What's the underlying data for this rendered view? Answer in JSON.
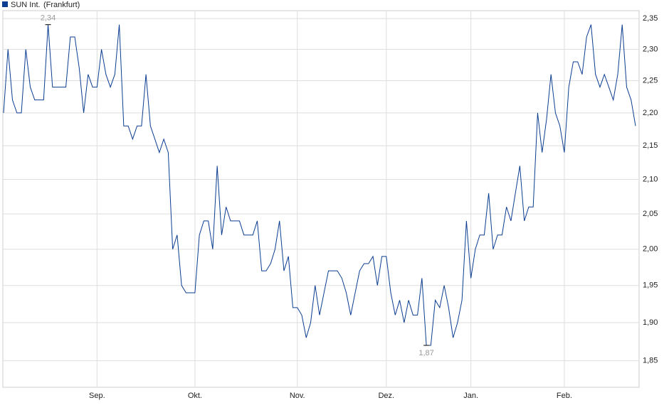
{
  "chart_data": {
    "type": "line",
    "log_scale": true,
    "grid": true,
    "series": [
      {
        "name": "SUN Int.",
        "color": "#0b3d91",
        "values": [
          2.2,
          2.3,
          2.22,
          2.2,
          2.2,
          2.3,
          2.24,
          2.22,
          2.22,
          2.22,
          2.34,
          2.24,
          2.24,
          2.24,
          2.24,
          2.32,
          2.32,
          2.27,
          2.2,
          2.26,
          2.24,
          2.24,
          2.3,
          2.26,
          2.24,
          2.26,
          2.34,
          2.18,
          2.18,
          2.16,
          2.18,
          2.18,
          2.26,
          2.18,
          2.16,
          2.14,
          2.16,
          2.14,
          2.0,
          2.02,
          1.95,
          1.94,
          1.94,
          1.94,
          2.02,
          2.04,
          2.04,
          2.0,
          2.12,
          2.02,
          2.06,
          2.04,
          2.04,
          2.04,
          2.02,
          2.02,
          2.02,
          2.04,
          1.97,
          1.97,
          1.98,
          2.0,
          2.04,
          1.97,
          1.99,
          1.92,
          1.92,
          1.91,
          1.88,
          1.9,
          1.95,
          1.91,
          1.94,
          1.97,
          1.97,
          1.97,
          1.96,
          1.94,
          1.91,
          1.94,
          1.97,
          1.98,
          1.98,
          1.99,
          1.95,
          1.99,
          1.99,
          1.94,
          1.91,
          1.93,
          1.9,
          1.93,
          1.91,
          1.91,
          1.96,
          1.87,
          1.87,
          1.93,
          1.92,
          1.95,
          1.92,
          1.88,
          1.9,
          1.93,
          2.04,
          1.96,
          2.0,
          2.02,
          2.02,
          2.08,
          2.0,
          2.02,
          2.02,
          2.06,
          2.04,
          2.08,
          2.12,
          2.04,
          2.06,
          2.06,
          2.2,
          2.14,
          2.19,
          2.26,
          2.2,
          2.18,
          2.14,
          2.24,
          2.28,
          2.28,
          2.26,
          2.32,
          2.34,
          2.26,
          2.24,
          2.26,
          2.24,
          2.22,
          2.26,
          2.34,
          2.24,
          2.22,
          2.18
        ]
      }
    ],
    "exchange": "(Frankfurt)",
    "categories": [
      null,
      null,
      null,
      null,
      null,
      null,
      null,
      null,
      null,
      null,
      null,
      null,
      null,
      null,
      null,
      null,
      null,
      null,
      null,
      null,
      null,
      "Sep.",
      null,
      null,
      null,
      null,
      null,
      null,
      null,
      null,
      null,
      null,
      null,
      null,
      null,
      null,
      null,
      null,
      null,
      null,
      null,
      null,
      null,
      "Okt.",
      null,
      null,
      null,
      null,
      null,
      null,
      null,
      null,
      null,
      null,
      null,
      null,
      null,
      null,
      null,
      null,
      null,
      null,
      null,
      null,
      null,
      null,
      "Nov.",
      null,
      null,
      null,
      null,
      null,
      null,
      null,
      null,
      null,
      null,
      null,
      null,
      null,
      null,
      null,
      null,
      null,
      null,
      null,
      "Dez.",
      null,
      null,
      null,
      null,
      null,
      null,
      null,
      null,
      null,
      null,
      null,
      null,
      null,
      null,
      null,
      null,
      null,
      null,
      "Jan.",
      null,
      null,
      null,
      null,
      null,
      null,
      null,
      null,
      null,
      null,
      null,
      null,
      null,
      null,
      null,
      null,
      null,
      null,
      null,
      null,
      "Feb.",
      null,
      null,
      null,
      null,
      null,
      null,
      null,
      null,
      null,
      null,
      null,
      null,
      null,
      null,
      null,
      null
    ],
    "ylim": [
      1.816,
      2.363
    ],
    "yticks": [
      {
        "value": 1.85,
        "label": "1,85"
      },
      {
        "value": 1.9,
        "label": "1,90"
      },
      {
        "value": 1.95,
        "label": "1,95"
      },
      {
        "value": 2.0,
        "label": "2,00"
      },
      {
        "value": 2.05,
        "label": "2,05"
      },
      {
        "value": 2.1,
        "label": "2,10"
      },
      {
        "value": 2.15,
        "label": "2,15"
      },
      {
        "value": 2.2,
        "label": "2,20"
      },
      {
        "value": 2.25,
        "label": "2,25"
      },
      {
        "value": 2.3,
        "label": "2,30"
      },
      {
        "value": 2.35,
        "label": "2,35"
      }
    ],
    "annotations": [
      {
        "text": "2,34",
        "x": 10,
        "value": 2.34,
        "position": "above"
      },
      {
        "text": "1,87",
        "x": 95,
        "value": 1.87,
        "position": "below"
      }
    ]
  }
}
